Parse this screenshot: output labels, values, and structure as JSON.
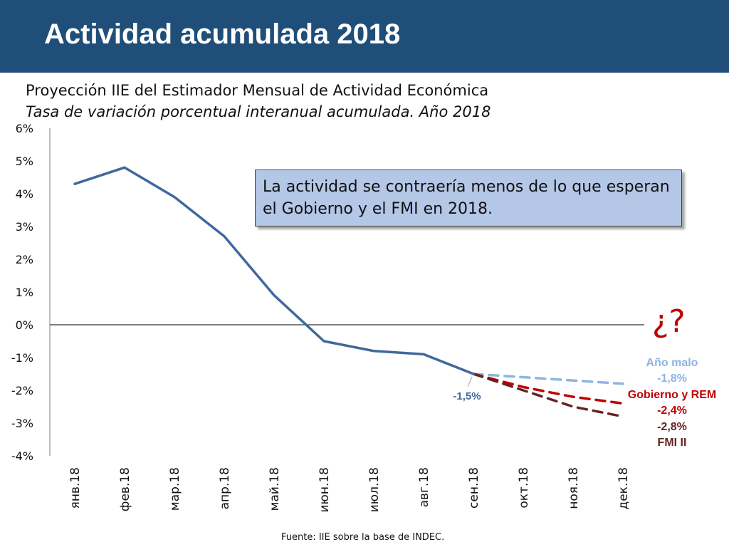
{
  "header": {
    "title": "Actividad acumulada 2018"
  },
  "subtitle": {
    "line1": "Proyección IIE del Estimador Mensual de Actividad Económica",
    "line2": "Tasa de variación porcentual interanual acumulada. Año 2018"
  },
  "callout": {
    "text": "La actividad se contraería menos de lo que esperan el Gobierno y el FMI en 2018."
  },
  "question_mark": "¿?",
  "source": "Fuente: IIE sobre la base de INDEC.",
  "colors": {
    "header_bg": "#1f4e79",
    "main_line": "#41689d",
    "ano_malo": "#8eb4e3",
    "gobierno_rem": "#c00000",
    "fmi": "#632523"
  },
  "chart_data": {
    "type": "line",
    "y_ticks": [
      "6%",
      "5%",
      "4%",
      "3%",
      "2%",
      "1%",
      "0%",
      "-1%",
      "-2%",
      "-3%",
      "-4%"
    ],
    "ylim": [
      -4,
      6
    ],
    "categories": [
      "янв.18",
      "фев.18",
      "мар.18",
      "апр.18",
      "май.18",
      "июн.18",
      "июл.18",
      "авг.18",
      "сен.18",
      "окт.18",
      "ноя.18",
      "дек.18"
    ],
    "series": [
      {
        "values": [
          4.3,
          4.8,
          3.9,
          2.7,
          0.9,
          -0.5,
          -0.8,
          -0.9,
          -1.5,
          null,
          null,
          null
        ]
      },
      {
        "name": "Año malo",
        "values": [
          null,
          null,
          null,
          null,
          null,
          null,
          null,
          null,
          -1.5,
          -1.6,
          -1.7,
          -1.8
        ]
      },
      {
        "name": "Gobierno y REM",
        "values": [
          null,
          null,
          null,
          null,
          null,
          null,
          null,
          null,
          -1.5,
          -1.9,
          -2.2,
          -2.4
        ]
      },
      {
        "name": "FMI II",
        "values": [
          null,
          null,
          null,
          null,
          null,
          null,
          null,
          null,
          -1.5,
          -2.0,
          -2.5,
          -2.8
        ]
      }
    ],
    "annotations": {
      "last_actual": "-1,5%",
      "ano_malo_label": "Año malo",
      "ano_malo_value": "-1,8%",
      "gobierno_label": "Gobierno y REM",
      "gobierno_value": "-2,4%",
      "fmi_value": "-2,8%",
      "fmi_label": "FMI II"
    }
  }
}
